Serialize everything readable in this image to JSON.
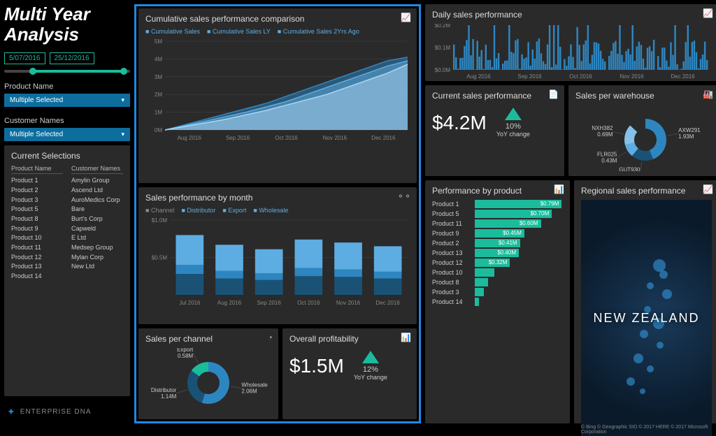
{
  "title": "Multi Year Analysis",
  "dates": {
    "from": "5/07/2016",
    "to": "25/12/2016"
  },
  "filters": {
    "product_label": "Product Name",
    "product_value": "Multiple Selected",
    "customer_label": "Customer Names",
    "customer_value": "Multiple Selected"
  },
  "selections": {
    "title": "Current Selections",
    "col1_header": "Product Name",
    "col1": [
      "Product 1",
      "Product 2",
      "Product 3",
      "Product 5",
      "Product 8",
      "Product 9",
      "Product 10",
      "Product 11",
      "Product 12",
      "Product 13",
      "Product 14"
    ],
    "col2_header": "Customer Names",
    "col2": [
      "Amylin Group",
      "Ascend Ltd",
      "AuroMedics Corp",
      "Bare",
      "Burt's Corp",
      "Capweld",
      "E Ltd",
      "Medsep Group",
      "Mylan Corp",
      "New Ltd"
    ]
  },
  "logo": "ENTERPRISE DNA",
  "cumulative": {
    "title": "Cumulative sales performance comparison",
    "legend": [
      "Cumulative Sales",
      "Cumulative Sales LY",
      "Cumulative Sales 2Yrs Ago"
    ],
    "y_ticks": [
      "5M",
      "4M",
      "3M",
      "2M",
      "1M",
      "0M"
    ],
    "x_ticks": [
      "Aug 2016",
      "Sep 2016",
      "Oct 2016",
      "Nov 2016",
      "Dec 2016"
    ],
    "series": [
      [
        0,
        0.3,
        0.6,
        0.9,
        1.2,
        1.5,
        1.9,
        2.3,
        2.7,
        3.1,
        3.5,
        3.9,
        4.1
      ],
      [
        0,
        0.25,
        0.5,
        0.75,
        1.0,
        1.3,
        1.6,
        2.0,
        2.4,
        2.8,
        3.2,
        3.6,
        3.9
      ],
      [
        0,
        0.2,
        0.4,
        0.6,
        0.85,
        1.1,
        1.4,
        1.7,
        2.0,
        2.4,
        2.8,
        3.2,
        3.7
      ]
    ],
    "colors": [
      "#2e86c1",
      "#5dade2",
      "#aed6f1"
    ]
  },
  "monthly": {
    "title": "Sales performance by month",
    "legend_label": "Channel",
    "legend": [
      "Distributor",
      "Export",
      "Wholesale"
    ],
    "y_ticks": [
      "$1.0M",
      "$0.5M"
    ],
    "x_ticks": [
      "Jul 2016",
      "Aug 2016",
      "Sep 2016",
      "Oct 2016",
      "Nov 2016",
      "Dec 2016"
    ],
    "stacks": [
      [
        0.28,
        0.12,
        0.4
      ],
      [
        0.22,
        0.1,
        0.35
      ],
      [
        0.2,
        0.09,
        0.32
      ],
      [
        0.25,
        0.11,
        0.38
      ],
      [
        0.24,
        0.1,
        0.36
      ],
      [
        0.22,
        0.09,
        0.34
      ]
    ],
    "colors": [
      "#1a5276",
      "#2e86c1",
      "#5dade2"
    ]
  },
  "channel_donut": {
    "title": "Sales per channel",
    "segments": [
      {
        "label": "Wholesale",
        "value": "2.06M",
        "pct": 55,
        "color": "#2e86c1"
      },
      {
        "label": "Distributor",
        "value": "1.14M",
        "pct": 30,
        "color": "#1a5276"
      },
      {
        "label": "Export",
        "value": "0.58M",
        "pct": 15,
        "color": "#1abc9c"
      }
    ]
  },
  "profitability": {
    "title": "Overall profitability",
    "value": "$1.5M",
    "change": "12%",
    "change_label": "YoY change"
  },
  "daily": {
    "title": "Daily sales performance",
    "y_ticks": [
      "$0.2M",
      "$0.1M",
      "$0.0M"
    ],
    "x_ticks": [
      "Aug 2016",
      "Sep 2016",
      "Oct 2016",
      "Nov 2016",
      "Dec 2016"
    ],
    "color": "#2e86c1"
  },
  "current_sales": {
    "title": "Current sales performance",
    "value": "$4.2M",
    "change": "10%",
    "change_label": "YoY change"
  },
  "warehouse": {
    "title": "Sales per warehouse",
    "segments": [
      {
        "label": "AXW291",
        "value": "1.93M",
        "pct": 44,
        "color": "#2e86c1"
      },
      {
        "label": "GUT930",
        "value": "0.73M",
        "pct": 17,
        "color": "#1a5276"
      },
      {
        "label": "FLR025",
        "value": "0.43M",
        "pct": 10,
        "color": "#5dade2"
      },
      {
        "label": "NXH382",
        "value": "0.69M",
        "pct": 16,
        "color": "#85c1e9"
      }
    ]
  },
  "by_product": {
    "title": "Performance by product",
    "max": 0.8,
    "rows": [
      {
        "label": "Product 1",
        "value": 0.79,
        "text": "$0.79M"
      },
      {
        "label": "Product 5",
        "value": 0.7,
        "text": "$0.70M"
      },
      {
        "label": "Product 11",
        "value": 0.6,
        "text": "$0.60M"
      },
      {
        "label": "Product 9",
        "value": 0.45,
        "text": "$0.45M"
      },
      {
        "label": "Product 2",
        "value": 0.41,
        "text": "$0.41M"
      },
      {
        "label": "Product 13",
        "value": 0.4,
        "text": "$0.40M"
      },
      {
        "label": "Product 12",
        "value": 0.32,
        "text": "$0.32M"
      },
      {
        "label": "Product 10",
        "value": 0.18,
        "text": ""
      },
      {
        "label": "Product 8",
        "value": 0.12,
        "text": ""
      },
      {
        "label": "Product 3",
        "value": 0.08,
        "text": ""
      },
      {
        "label": "Product 14",
        "value": 0.04,
        "text": ""
      }
    ]
  },
  "regional": {
    "title": "Regional sales performance",
    "country": "NEW ZEALAND",
    "attribution": "© Bing  © Geographic SIO © 2017 HERE © 2017 Microsoft Corporation"
  }
}
